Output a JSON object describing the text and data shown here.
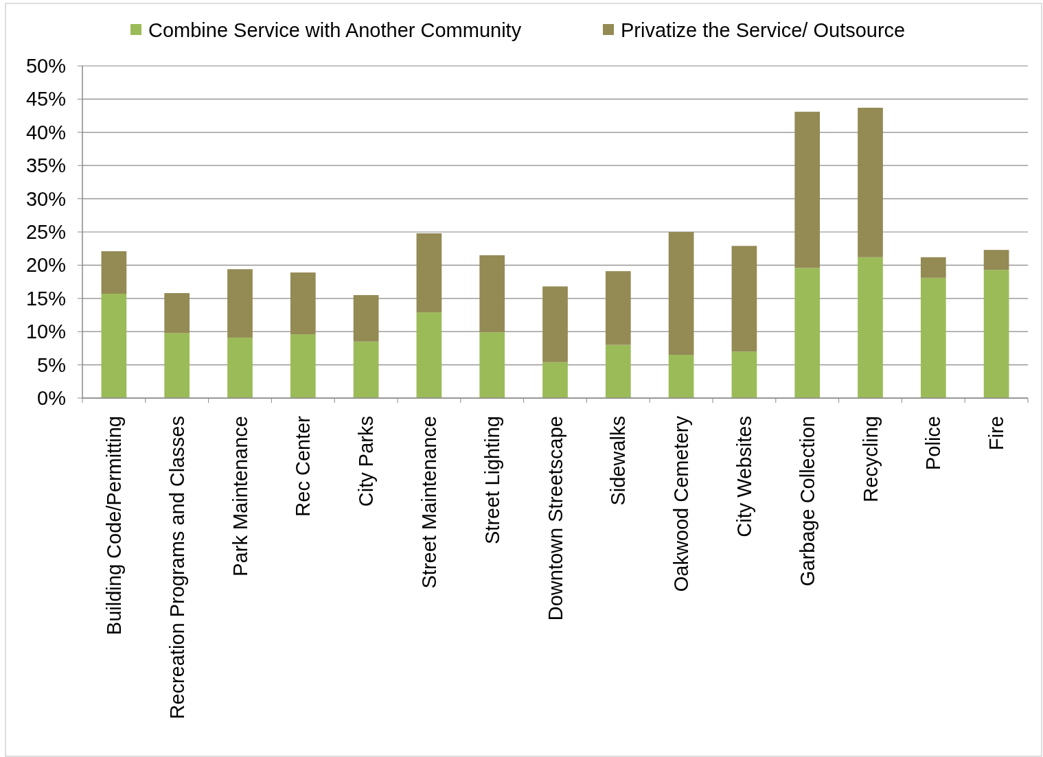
{
  "chart_data": {
    "type": "bar",
    "stacked": true,
    "legend": "top",
    "grid": "y",
    "categories": [
      "Building Code/Permitting",
      "Recreation Programs and Classes",
      "Park Maintenance",
      "Rec Center",
      "City Parks",
      "Street Maintenance",
      "Street Lighting",
      "Downtown Streetscape",
      "Sidewalks",
      "Oakwood Cemetery",
      "City Websites",
      "Garbage Collection",
      "Recycling",
      "Police",
      "Fire"
    ],
    "series": [
      {
        "name": "Combine Service with Another Community",
        "color": "#9bbb59",
        "values": [
          15.7,
          9.8,
          9.1,
          9.6,
          8.5,
          12.9,
          9.9,
          5.4,
          8.0,
          6.5,
          7.0,
          19.6,
          21.2,
          18.1,
          19.3
        ]
      },
      {
        "name": "Privatize the Service/ Outsource",
        "color": "#948a54",
        "values": [
          6.4,
          6.0,
          10.3,
          9.3,
          7.0,
          11.9,
          11.6,
          11.4,
          11.1,
          18.5,
          15.9,
          23.5,
          22.5,
          3.1,
          3.0
        ]
      }
    ],
    "ylim": [
      0,
      50
    ],
    "yticks": [
      {
        "value": 0,
        "label": "0%"
      },
      {
        "value": 5,
        "label": "5%"
      },
      {
        "value": 10,
        "label": "10%"
      },
      {
        "value": 15,
        "label": "15%"
      },
      {
        "value": 20,
        "label": "20%"
      },
      {
        "value": 25,
        "label": "25%"
      },
      {
        "value": 30,
        "label": "30%"
      },
      {
        "value": 35,
        "label": "35%"
      },
      {
        "value": 40,
        "label": "40%"
      },
      {
        "value": 45,
        "label": "45%"
      },
      {
        "value": 50,
        "label": "50%"
      }
    ]
  }
}
